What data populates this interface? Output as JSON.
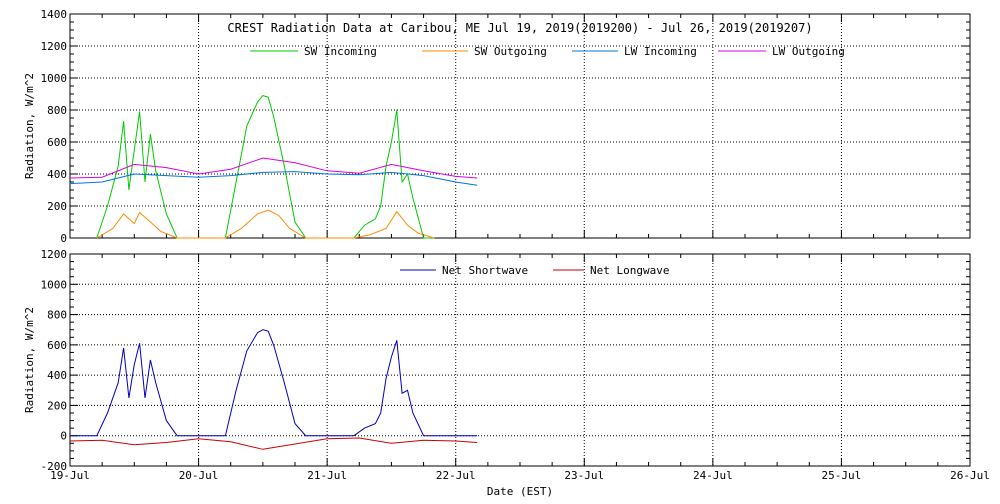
{
  "chart_data": [
    {
      "type": "line",
      "title": "CREST Radiation Data at Caribou, ME   Jul 19, 2019(2019200) - Jul 26, 2019(2019207)",
      "xlabel": "",
      "ylabel": "Radiation, W/m^2",
      "ylim": [
        0,
        1400
      ],
      "yticks": [
        0,
        200,
        400,
        600,
        800,
        1000,
        1200,
        1400
      ],
      "xlim": [
        "2019-07-19",
        "2019-07-26"
      ],
      "xticks": [
        "19-Jul",
        "20-Jul",
        "21-Jul",
        "22-Jul",
        "23-Jul",
        "24-Jul",
        "25-Jul",
        "26-Jul"
      ],
      "grid": true,
      "legend_position": "top",
      "series": [
        {
          "name": "SW Incoming",
          "color": "#00cc00",
          "x": [
            "2019-07-19 05:00",
            "2019-07-19 07:00",
            "2019-07-19 09:00",
            "2019-07-19 10:00",
            "2019-07-19 11:00",
            "2019-07-19 12:00",
            "2019-07-19 13:00",
            "2019-07-19 14:00",
            "2019-07-19 15:00",
            "2019-07-19 16:00",
            "2019-07-19 18:00",
            "2019-07-19 20:00",
            "2019-07-20 05:00",
            "2019-07-20 07:00",
            "2019-07-20 09:00",
            "2019-07-20 11:00",
            "2019-07-20 12:00",
            "2019-07-20 13:00",
            "2019-07-20 14:00",
            "2019-07-20 16:00",
            "2019-07-20 18:00",
            "2019-07-20 20:00",
            "2019-07-21 05:00",
            "2019-07-21 07:00",
            "2019-07-21 09:00",
            "2019-07-21 10:00",
            "2019-07-21 11:00",
            "2019-07-21 12:00",
            "2019-07-21 13:00",
            "2019-07-21 14:00",
            "2019-07-21 15:00",
            "2019-07-21 16:00",
            "2019-07-21 18:00",
            "2019-07-21 20:00"
          ],
          "y": [
            0,
            200,
            450,
            730,
            300,
            550,
            790,
            350,
            650,
            420,
            150,
            0,
            0,
            350,
            700,
            850,
            890,
            880,
            760,
            450,
            100,
            0,
            0,
            80,
            120,
            200,
            450,
            600,
            800,
            350,
            400,
            250,
            0,
            0
          ]
        },
        {
          "name": "SW Outgoing",
          "color": "#ff8800",
          "x": [
            "2019-07-19 05:00",
            "2019-07-19 08:00",
            "2019-07-19 10:00",
            "2019-07-19 12:00",
            "2019-07-19 13:00",
            "2019-07-19 15:00",
            "2019-07-19 17:00",
            "2019-07-19 20:00",
            "2019-07-20 05:00",
            "2019-07-20 08:00",
            "2019-07-20 11:00",
            "2019-07-20 13:00",
            "2019-07-20 15:00",
            "2019-07-20 17:00",
            "2019-07-20 20:00",
            "2019-07-21 05:00",
            "2019-07-21 08:00",
            "2019-07-21 11:00",
            "2019-07-21 13:00",
            "2019-07-21 15:00",
            "2019-07-21 17:00",
            "2019-07-21 20:00"
          ],
          "y": [
            0,
            60,
            150,
            90,
            160,
            100,
            40,
            0,
            0,
            60,
            150,
            175,
            140,
            60,
            0,
            0,
            20,
            60,
            165,
            80,
            30,
            0
          ]
        },
        {
          "name": "LW Incoming",
          "color": "#0077dd",
          "x": [
            "2019-07-19 00:00",
            "2019-07-19 06:00",
            "2019-07-19 12:00",
            "2019-07-19 18:00",
            "2019-07-20 00:00",
            "2019-07-20 06:00",
            "2019-07-20 12:00",
            "2019-07-20 18:00",
            "2019-07-21 00:00",
            "2019-07-21 06:00",
            "2019-07-21 12:00",
            "2019-07-21 18:00",
            "2019-07-22 00:00",
            "2019-07-22 04:00"
          ],
          "y": [
            340,
            350,
            400,
            390,
            380,
            390,
            410,
            415,
            400,
            395,
            410,
            390,
            350,
            330
          ]
        },
        {
          "name": "LW Outgoing",
          "color": "#dd00dd",
          "x": [
            "2019-07-19 00:00",
            "2019-07-19 06:00",
            "2019-07-19 12:00",
            "2019-07-19 18:00",
            "2019-07-20 00:00",
            "2019-07-20 06:00",
            "2019-07-20 12:00",
            "2019-07-20 18:00",
            "2019-07-21 00:00",
            "2019-07-21 06:00",
            "2019-07-21 12:00",
            "2019-07-21 18:00",
            "2019-07-22 00:00",
            "2019-07-22 04:00"
          ],
          "y": [
            375,
            380,
            460,
            440,
            400,
            430,
            500,
            470,
            420,
            405,
            460,
            420,
            385,
            375
          ]
        }
      ]
    },
    {
      "type": "line",
      "title": "",
      "xlabel": "Date (EST)",
      "ylabel": "Radiation, W/m^2",
      "ylim": [
        -200,
        1200
      ],
      "yticks": [
        -200,
        0,
        200,
        400,
        600,
        800,
        1000,
        1200
      ],
      "xlim": [
        "2019-07-19",
        "2019-07-26"
      ],
      "xticks": [
        "19-Jul",
        "20-Jul",
        "21-Jul",
        "22-Jul",
        "23-Jul",
        "24-Jul",
        "25-Jul",
        "26-Jul"
      ],
      "grid": true,
      "legend_position": "top",
      "series": [
        {
          "name": "Net Shortwave",
          "color": "#0000bb",
          "x": [
            "2019-07-19 00:00",
            "2019-07-19 05:00",
            "2019-07-19 07:00",
            "2019-07-19 09:00",
            "2019-07-19 10:00",
            "2019-07-19 11:00",
            "2019-07-19 12:00",
            "2019-07-19 13:00",
            "2019-07-19 14:00",
            "2019-07-19 15:00",
            "2019-07-19 16:00",
            "2019-07-19 18:00",
            "2019-07-19 20:00",
            "2019-07-20 05:00",
            "2019-07-20 07:00",
            "2019-07-20 09:00",
            "2019-07-20 11:00",
            "2019-07-20 12:00",
            "2019-07-20 13:00",
            "2019-07-20 14:00",
            "2019-07-20 16:00",
            "2019-07-20 18:00",
            "2019-07-20 20:00",
            "2019-07-21 05:00",
            "2019-07-21 07:00",
            "2019-07-21 09:00",
            "2019-07-21 10:00",
            "2019-07-21 11:00",
            "2019-07-21 12:00",
            "2019-07-21 13:00",
            "2019-07-21 14:00",
            "2019-07-21 15:00",
            "2019-07-21 16:00",
            "2019-07-21 18:00",
            "2019-07-22 04:00"
          ],
          "y": [
            0,
            0,
            150,
            350,
            580,
            250,
            470,
            610,
            250,
            500,
            350,
            100,
            0,
            0,
            300,
            560,
            680,
            700,
            690,
            600,
            350,
            80,
            0,
            0,
            50,
            80,
            150,
            380,
            520,
            630,
            280,
            300,
            150,
            0,
            0
          ]
        },
        {
          "name": "Net Longwave",
          "color": "#cc0000",
          "x": [
            "2019-07-19 00:00",
            "2019-07-19 06:00",
            "2019-07-19 12:00",
            "2019-07-19 18:00",
            "2019-07-20 00:00",
            "2019-07-20 06:00",
            "2019-07-20 12:00",
            "2019-07-20 18:00",
            "2019-07-21 00:00",
            "2019-07-21 06:00",
            "2019-07-21 12:00",
            "2019-07-21 18:00",
            "2019-07-22 00:00",
            "2019-07-22 04:00"
          ],
          "y": [
            -35,
            -30,
            -60,
            -45,
            -20,
            -40,
            -90,
            -55,
            -20,
            -15,
            -50,
            -30,
            -35,
            -45
          ]
        }
      ]
    }
  ]
}
